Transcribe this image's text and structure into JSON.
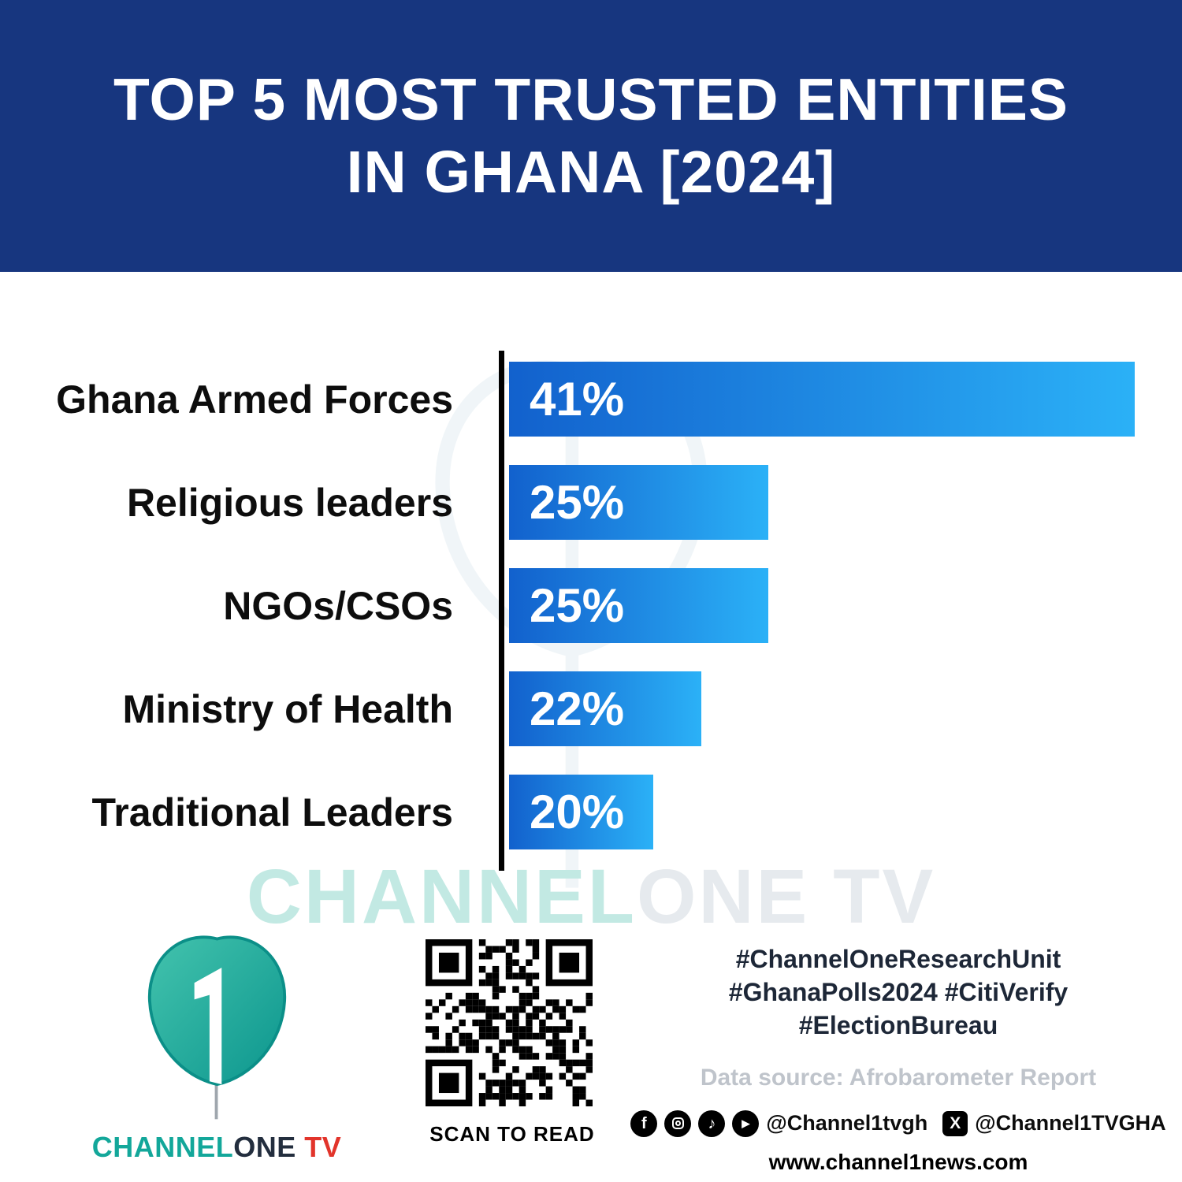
{
  "header": {
    "title_line1": "TOP 5 MOST TRUSTED ENTITIES",
    "title_line2": "IN GHANA [2024]"
  },
  "chart_data": {
    "type": "bar",
    "orientation": "horizontal",
    "title": "Top 5 Most Trusted Entities in Ghana [2024]",
    "categories": [
      "Ghana Armed Forces",
      "Religious leaders",
      "NGOs/CSOs",
      "Ministry of Health",
      "Traditional Leaders"
    ],
    "values": [
      41,
      25,
      25,
      22,
      20
    ],
    "value_labels": [
      "41%",
      "25%",
      "25%",
      "22%",
      "20%"
    ],
    "unit": "%",
    "bar_display_widths_pct": [
      100,
      41.4,
      41.4,
      30.7,
      23.1
    ],
    "bar_gradient_start": "#1261cd",
    "bar_gradient_end": "#2bb1f7",
    "axis_color": "#000000",
    "grid": false,
    "legend": false,
    "source": "Afrobarometer Report"
  },
  "watermark": {
    "part1": "CHANNEL",
    "part2": "ONE TV"
  },
  "footer": {
    "brand": {
      "channel": "CHANNEL",
      "one": "ONE",
      "tv": " TV"
    },
    "qr_caption": "SCAN TO READ",
    "hashtags": {
      "line1": "#ChannelOneResearchUnit",
      "line2": "#GhanaPolls2024 #CitiVerify",
      "line3": "#ElectionBureau"
    },
    "data_source": "Data source: Afrobarometer Report",
    "social": {
      "handle1": "@Channel1tvgh",
      "handle2": "@Channel1TVGHA"
    },
    "website": "www.channel1news.com"
  },
  "icons": {
    "facebook": "f",
    "tiktok": "♪",
    "youtube": "▶",
    "x": "X"
  },
  "colors": {
    "header_bg": "#17367f",
    "brand_teal": "#13a79a",
    "brand_red": "#e2342b",
    "axis_black": "#000000"
  }
}
